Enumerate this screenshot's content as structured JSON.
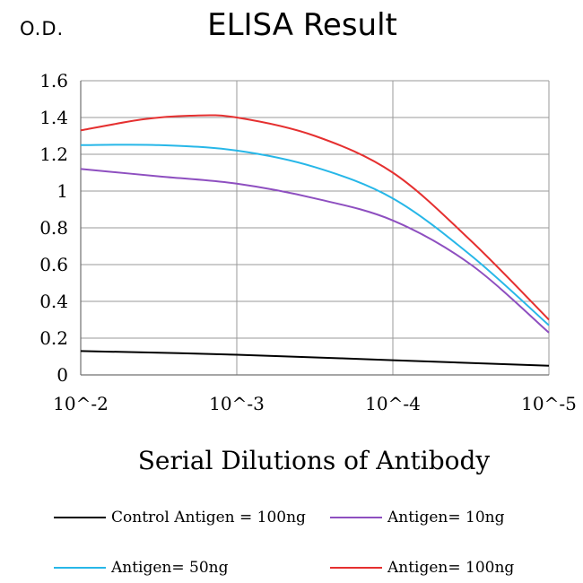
{
  "chart_data": {
    "type": "line",
    "title": "ELISA Result",
    "ylabel": "O.D.",
    "xlabel": "Serial Dilutions of Antibody",
    "x_categories": [
      "10^-2",
      "10^-3",
      "10^-4",
      "10^-5"
    ],
    "ylim": [
      0,
      1.6
    ],
    "yticks": [
      "0",
      "0.2",
      "0.4",
      "0.6",
      "0.8",
      "1",
      "1.2",
      "1.4",
      "1.6"
    ],
    "grid": true,
    "legend_position": "bottom",
    "series": [
      {
        "name": "Control Antigen = 100ng",
        "color": "#000000",
        "points": [
          [
            0,
            0.13
          ],
          [
            1,
            0.11
          ],
          [
            2,
            0.08
          ],
          [
            3,
            0.05
          ]
        ]
      },
      {
        "name": "Antigen= 10ng",
        "color": "#8e4fc0",
        "points": [
          [
            0,
            1.12
          ],
          [
            0.5,
            1.08
          ],
          [
            1,
            1.04
          ],
          [
            1.5,
            0.96
          ],
          [
            2,
            0.84
          ],
          [
            2.5,
            0.6
          ],
          [
            3,
            0.23
          ]
        ]
      },
      {
        "name": "Antigen= 50ng",
        "color": "#27b7e8",
        "points": [
          [
            0,
            1.25
          ],
          [
            0.5,
            1.25
          ],
          [
            1,
            1.22
          ],
          [
            1.5,
            1.13
          ],
          [
            2,
            0.96
          ],
          [
            2.5,
            0.65
          ],
          [
            3,
            0.27
          ]
        ]
      },
      {
        "name": "Antigen= 100ng",
        "color": "#e53030",
        "points": [
          [
            0,
            1.33
          ],
          [
            0.4,
            1.39
          ],
          [
            0.7,
            1.41
          ],
          [
            1,
            1.4
          ],
          [
            1.5,
            1.3
          ],
          [
            2,
            1.1
          ],
          [
            2.5,
            0.73
          ],
          [
            3,
            0.3
          ]
        ]
      }
    ]
  }
}
